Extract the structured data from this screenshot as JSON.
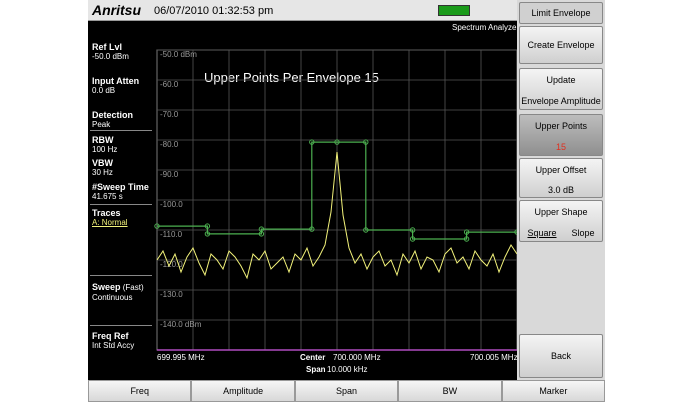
{
  "header": {
    "brand": "Anritsu",
    "datetime": "06/07/2010 01:32:53 pm",
    "mode": "Spectrum Analyzer"
  },
  "sidebar": [
    {
      "label": "Ref Lvl",
      "value": "-50.0 dBm"
    },
    {
      "label": "Input Atten",
      "value": "0.0 dB"
    },
    {
      "label": "Detection",
      "value": "Peak"
    },
    {
      "label": "RBW",
      "value": "100 Hz"
    },
    {
      "label": "VBW",
      "value": "30 Hz"
    },
    {
      "label": "#Sweep Time",
      "value": "41.675 s"
    },
    {
      "label": "Traces",
      "value": "A: Normal"
    },
    {
      "label": "Sweep",
      "qualifier": "(Fast)",
      "value": "Continuous"
    },
    {
      "label": "Freq Ref",
      "value": "Int Std Accy"
    }
  ],
  "plot": {
    "annotation": "Upper Points Per Envelope  15",
    "yticks": [
      {
        "value": -50,
        "label": "-50.0 dBm"
      },
      {
        "value": -60,
        "label": "-60.0"
      },
      {
        "value": -70,
        "label": "-70.0"
      },
      {
        "value": -80,
        "label": "-80.0"
      },
      {
        "value": -90,
        "label": "-90.0"
      },
      {
        "value": -100,
        "label": "-100.0"
      },
      {
        "value": -110,
        "label": "-110.0"
      },
      {
        "value": -120,
        "label": "-120.0"
      },
      {
        "value": -130,
        "label": "-130.0"
      },
      {
        "value": -140,
        "label": "-140.0 dBm"
      }
    ],
    "ylim": [
      -50,
      -150
    ],
    "start": "699.995 MHz",
    "center_label": "Center",
    "center": "700.000 MHz",
    "span_label": "Span",
    "span": "10.000 kHz",
    "stop": "700.005 MHz",
    "xlim": [
      0,
      10
    ],
    "envelope": {
      "color": "#4caf50",
      "x": [
        0,
        1.4,
        1.4,
        2.9,
        2.9,
        4.3,
        4.3,
        5.0,
        5.8,
        5.8,
        7.1,
        7.1,
        8.6,
        8.6,
        10
      ],
      "values": [
        -108.7,
        -108.7,
        -111.3,
        -111.3,
        -109.7,
        -109.7,
        -80.7,
        -80.7,
        -80.7,
        -110,
        -110,
        -113,
        -113,
        -110.7,
        -110.7
      ]
    },
    "trace": {
      "color": "#f2f27a",
      "values": [
        -120,
        -117,
        -122,
        -118,
        -124,
        -119,
        -116,
        -121,
        -125,
        -118,
        -120,
        -123,
        -117,
        -119,
        -122,
        -126,
        -118,
        -120,
        -117,
        -123,
        -121,
        -119,
        -124,
        -118,
        -120,
        -116,
        -122,
        -119,
        -115,
        -104,
        -84,
        -105,
        -116,
        -121,
        -118,
        -123,
        -119,
        -117,
        -122,
        -120,
        -125,
        -118,
        -121,
        -117,
        -123,
        -119,
        -120,
        -124,
        -118,
        -116,
        -121,
        -119,
        -123,
        -117,
        -120,
        -122,
        -118,
        -124,
        -119,
        -115,
        -118
      ]
    }
  },
  "menu": {
    "title": "Limit Envelope",
    "buttons": [
      {
        "label": "Create Envelope"
      },
      {
        "label": "Update",
        "value": "Envelope Amplitude"
      },
      {
        "label": "Upper Points",
        "value": "15"
      },
      {
        "label": "Upper Offset",
        "value": "3.0 dB"
      },
      {
        "label": "Upper Shape",
        "option1": "Square",
        "option2": "Slope"
      },
      {
        "label": "Back"
      }
    ]
  },
  "tabs": [
    "Freq",
    "Amplitude",
    "Span",
    "BW",
    "Marker"
  ]
}
